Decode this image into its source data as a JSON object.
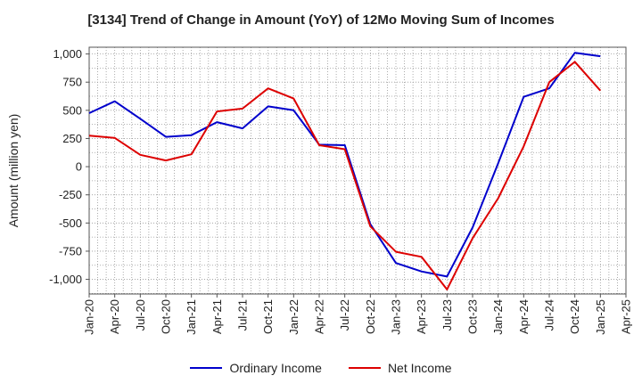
{
  "chart_data": {
    "type": "line",
    "title": "[3134]  Trend of Change in Amount (YoY) of 12Mo Moving Sum of Incomes",
    "ylabel": "Amount (million yen)",
    "xlabel": "",
    "ylim": [
      -1130,
      1060
    ],
    "yticks": [
      1000,
      750,
      500,
      250,
      0,
      -250,
      -500,
      -750,
      -1000
    ],
    "ytick_labels": [
      "1,000",
      "750",
      "500",
      "250",
      "0",
      "-250",
      "-500",
      "-750",
      "-1,000"
    ],
    "xtick_labels": [
      "Jan-20",
      "Apr-20",
      "Jul-20",
      "Oct-20",
      "Jan-21",
      "Apr-21",
      "Jul-21",
      "Oct-21",
      "Jan-22",
      "Apr-22",
      "Jul-22",
      "Oct-22",
      "Jan-23",
      "Apr-23",
      "Jul-23",
      "Oct-23",
      "Jan-24",
      "Apr-24",
      "Jul-24",
      "Oct-24",
      "Jan-25",
      "Apr-25"
    ],
    "grid": true,
    "legend_position": "bottom",
    "series": [
      {
        "name": "Ordinary Income",
        "color": "#0000cc",
        "values": [
          475,
          580,
          425,
          265,
          280,
          395,
          340,
          535,
          500,
          195,
          190,
          -510,
          -855,
          -930,
          -975,
          -540,
          30,
          620,
          695,
          1010,
          980
        ]
      },
      {
        "name": "Net Income",
        "color": "#dd0000",
        "values": [
          275,
          255,
          105,
          55,
          110,
          490,
          515,
          695,
          605,
          190,
          155,
          -530,
          -755,
          -800,
          -1090,
          -635,
          -280,
          180,
          750,
          930,
          675
        ]
      }
    ]
  }
}
